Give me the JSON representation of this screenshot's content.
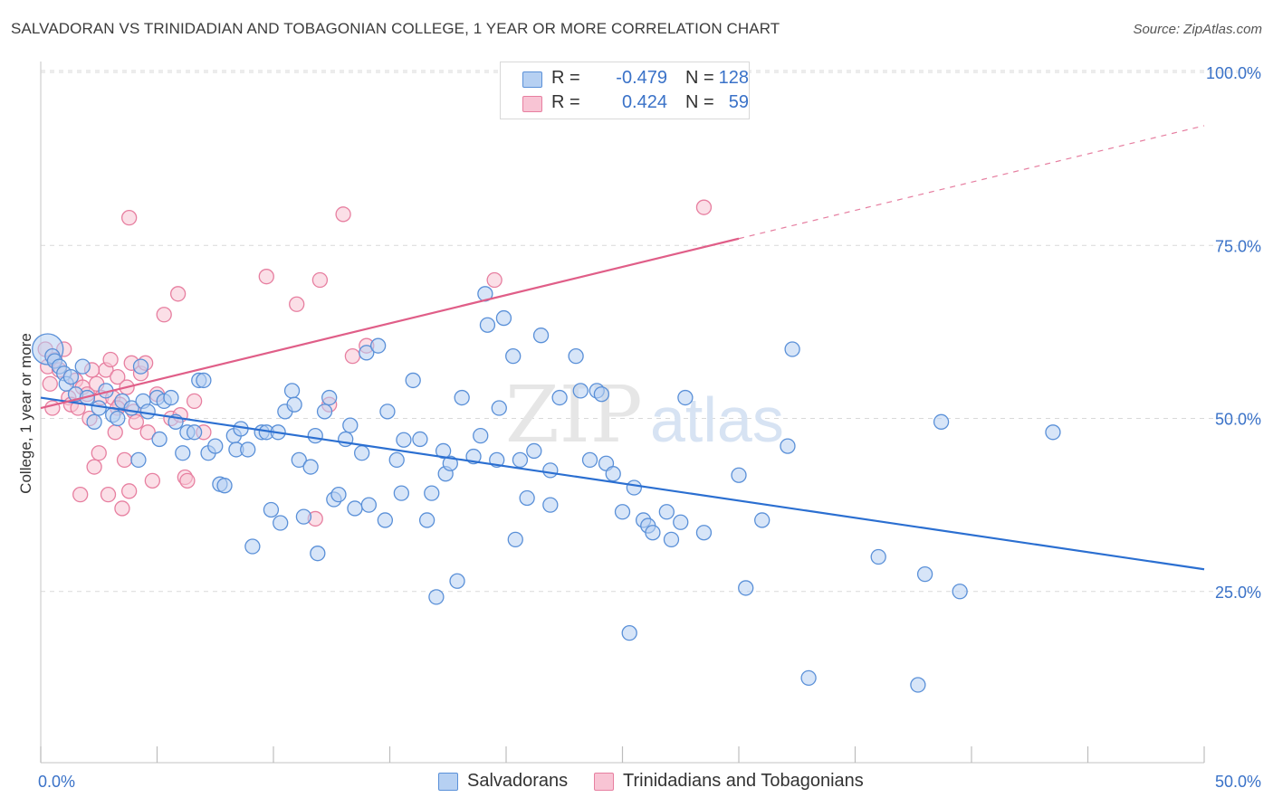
{
  "header": {
    "title": "SALVADORAN VS TRINIDADIAN AND TOBAGONIAN COLLEGE, 1 YEAR OR MORE CORRELATION CHART",
    "source": "Source: ZipAtlas.com"
  },
  "legend": {
    "rows": [
      {
        "r_label": "R =",
        "r_value": "-0.479",
        "n_label": "N =",
        "n_value": "128"
      },
      {
        "r_label": "R =",
        "r_value": "0.424",
        "n_label": "N =",
        "n_value": "59"
      }
    ]
  },
  "bottom_legend": {
    "items": [
      {
        "label": "Salvadorans"
      },
      {
        "label": "Trinidadians and Tobagonians"
      }
    ]
  },
  "watermark": {
    "zip": "ZIP",
    "atlas": "atlas"
  },
  "colors": {
    "blue_fill": "#b6d0f2",
    "blue_stroke": "#5a90d8",
    "blue_line": "#2b6fd1",
    "pink_fill": "#f8c4d4",
    "pink_stroke": "#e77fa0",
    "pink_line": "#e05e88",
    "tick_label": "#3a72c8",
    "grid": "#d9d9d9"
  },
  "chart_data": {
    "type": "scatter",
    "ylabel": "College, 1 year or more",
    "xlim": [
      0,
      50
    ],
    "ylim": [
      0,
      100
    ],
    "x_tick_labels": [
      {
        "x": 0,
        "label": "0.0%"
      },
      {
        "x": 50,
        "label": "50.0%"
      }
    ],
    "x_minor_ticks": [
      0,
      5,
      10,
      15,
      20,
      25,
      30,
      35,
      40,
      45,
      50
    ],
    "y_ticks": [
      {
        "y": 25,
        "label": "25.0%"
      },
      {
        "y": 50,
        "label": "50.0%"
      },
      {
        "y": 75,
        "label": "75.0%"
      },
      {
        "y": 100,
        "label": "100.0%"
      }
    ],
    "series": [
      {
        "name": "Salvadorans",
        "color": "blue",
        "trend": {
          "x0": 0,
          "y0": 53.0,
          "x1": 50,
          "y1": 28.2,
          "dash_from": 50
        },
        "points": [
          [
            0.3,
            60.0
          ],
          [
            0.5,
            59.0
          ],
          [
            0.6,
            58.3
          ],
          [
            0.8,
            57.5
          ],
          [
            1.0,
            56.5
          ],
          [
            1.1,
            55.0
          ],
          [
            1.3,
            56.0
          ],
          [
            1.5,
            53.5
          ],
          [
            1.8,
            57.5
          ],
          [
            2.0,
            53.0
          ],
          [
            2.3,
            49.5
          ],
          [
            2.5,
            51.5
          ],
          [
            2.8,
            54.0
          ],
          [
            3.1,
            50.5
          ],
          [
            3.3,
            50.0
          ],
          [
            3.5,
            52.5
          ],
          [
            3.9,
            51.5
          ],
          [
            4.2,
            44.0
          ],
          [
            4.3,
            57.5
          ],
          [
            4.4,
            52.5
          ],
          [
            4.6,
            51.0
          ],
          [
            5.0,
            53.0
          ],
          [
            5.1,
            47.0
          ],
          [
            5.3,
            52.5
          ],
          [
            5.6,
            53.0
          ],
          [
            5.8,
            49.5
          ],
          [
            6.1,
            45.0
          ],
          [
            6.3,
            48.0
          ],
          [
            6.6,
            48.0
          ],
          [
            6.8,
            55.5
          ],
          [
            7.0,
            55.5
          ],
          [
            7.2,
            45.0
          ],
          [
            7.5,
            46.0
          ],
          [
            7.7,
            40.5
          ],
          [
            7.9,
            40.3
          ],
          [
            8.3,
            47.5
          ],
          [
            8.4,
            45.5
          ],
          [
            8.6,
            48.5
          ],
          [
            8.9,
            45.5
          ],
          [
            9.1,
            31.5
          ],
          [
            9.5,
            48.0
          ],
          [
            9.7,
            48.0
          ],
          [
            9.9,
            36.8
          ],
          [
            10.2,
            48.0
          ],
          [
            10.3,
            34.9
          ],
          [
            10.5,
            51.0
          ],
          [
            10.8,
            54.0
          ],
          [
            10.9,
            52.0
          ],
          [
            11.1,
            44.0
          ],
          [
            11.3,
            35.8
          ],
          [
            11.6,
            43.0
          ],
          [
            11.8,
            47.5
          ],
          [
            11.9,
            30.5
          ],
          [
            12.2,
            51.0
          ],
          [
            12.4,
            53.0
          ],
          [
            12.6,
            38.3
          ],
          [
            12.8,
            39.0
          ],
          [
            13.1,
            47.0
          ],
          [
            13.3,
            49.0
          ],
          [
            13.5,
            37.0
          ],
          [
            13.8,
            45.0
          ],
          [
            14.0,
            59.5
          ],
          [
            14.1,
            37.5
          ],
          [
            14.5,
            60.5
          ],
          [
            14.8,
            35.3
          ],
          [
            14.9,
            51.0
          ],
          [
            15.3,
            44.0
          ],
          [
            15.5,
            39.2
          ],
          [
            15.6,
            46.9
          ],
          [
            16.0,
            55.5
          ],
          [
            16.3,
            47.0
          ],
          [
            16.6,
            35.3
          ],
          [
            16.8,
            39.2
          ],
          [
            17.0,
            24.2
          ],
          [
            17.3,
            45.3
          ],
          [
            17.4,
            42.0
          ],
          [
            17.6,
            43.5
          ],
          [
            17.9,
            26.5
          ],
          [
            18.1,
            53.0
          ],
          [
            18.6,
            44.5
          ],
          [
            18.9,
            47.5
          ],
          [
            19.1,
            68.0
          ],
          [
            19.2,
            63.5
          ],
          [
            19.6,
            44.0
          ],
          [
            19.7,
            51.5
          ],
          [
            19.9,
            64.5
          ],
          [
            20.3,
            59.0
          ],
          [
            20.4,
            32.5
          ],
          [
            20.6,
            44.0
          ],
          [
            20.9,
            38.5
          ],
          [
            21.2,
            45.3
          ],
          [
            21.5,
            62.0
          ],
          [
            21.9,
            42.5
          ],
          [
            21.9,
            37.5
          ],
          [
            22.3,
            53.0
          ],
          [
            23.0,
            59.0
          ],
          [
            23.2,
            54.0
          ],
          [
            23.6,
            44.0
          ],
          [
            23.9,
            54.0
          ],
          [
            24.1,
            53.5
          ],
          [
            24.3,
            43.5
          ],
          [
            24.6,
            42.0
          ],
          [
            25.0,
            36.5
          ],
          [
            25.3,
            19.0
          ],
          [
            25.5,
            40.0
          ],
          [
            25.9,
            35.3
          ],
          [
            26.1,
            34.5
          ],
          [
            26.3,
            33.5
          ],
          [
            26.9,
            36.5
          ],
          [
            27.1,
            32.5
          ],
          [
            27.5,
            35.0
          ],
          [
            27.7,
            53.0
          ],
          [
            28.5,
            33.5
          ],
          [
            30.0,
            41.8
          ],
          [
            30.3,
            25.5
          ],
          [
            31.0,
            35.3
          ],
          [
            32.1,
            46.0
          ],
          [
            32.3,
            60.0
          ],
          [
            33.0,
            12.5
          ],
          [
            36.0,
            30.0
          ],
          [
            37.7,
            11.5
          ],
          [
            38.0,
            27.5
          ],
          [
            38.7,
            49.5
          ],
          [
            39.5,
            25.0
          ],
          [
            43.5,
            48.0
          ]
        ]
      },
      {
        "name": "Trinidadians and Tobagonians",
        "color": "pink",
        "trend": {
          "x0": 0,
          "y0": 51.5,
          "x1": 50,
          "y1": 92.3,
          "dash_from": 30
        },
        "points": [
          [
            0.2,
            60.0
          ],
          [
            0.3,
            57.5
          ],
          [
            0.4,
            55.0
          ],
          [
            0.5,
            51.5
          ],
          [
            0.6,
            58.5
          ],
          [
            0.8,
            57.0
          ],
          [
            1.0,
            60.0
          ],
          [
            1.2,
            53.0
          ],
          [
            1.3,
            52.0
          ],
          [
            1.5,
            55.5
          ],
          [
            1.6,
            51.5
          ],
          [
            1.8,
            54.5
          ],
          [
            2.0,
            53.5
          ],
          [
            2.1,
            50.0
          ],
          [
            2.3,
            43.0
          ],
          [
            2.4,
            55.0
          ],
          [
            2.5,
            45.0
          ],
          [
            2.6,
            53.0
          ],
          [
            2.8,
            57.0
          ],
          [
            2.9,
            39.0
          ],
          [
            3.0,
            58.5
          ],
          [
            3.1,
            53.0
          ],
          [
            3.2,
            48.0
          ],
          [
            3.3,
            56.0
          ],
          [
            3.4,
            52.0
          ],
          [
            3.5,
            37.0
          ],
          [
            3.6,
            44.0
          ],
          [
            3.7,
            54.5
          ],
          [
            3.8,
            39.5
          ],
          [
            3.9,
            58.0
          ],
          [
            4.0,
            51.0
          ],
          [
            4.1,
            49.5
          ],
          [
            4.3,
            56.5
          ],
          [
            4.5,
            58.0
          ],
          [
            4.6,
            48.0
          ],
          [
            4.8,
            41.0
          ],
          [
            5.0,
            53.5
          ],
          [
            5.3,
            65.0
          ],
          [
            5.6,
            50.0
          ],
          [
            5.9,
            68.0
          ],
          [
            6.0,
            50.5
          ],
          [
            6.2,
            41.5
          ],
          [
            6.3,
            41.0
          ],
          [
            6.6,
            52.5
          ],
          [
            7.0,
            48.0
          ],
          [
            3.8,
            79.0
          ],
          [
            9.7,
            70.5
          ],
          [
            11.0,
            66.5
          ],
          [
            11.8,
            35.5
          ],
          [
            12.0,
            70.0
          ],
          [
            12.4,
            52.0
          ],
          [
            13.0,
            79.5
          ],
          [
            13.4,
            59.0
          ],
          [
            14.0,
            60.5
          ],
          [
            19.5,
            70.0
          ],
          [
            28.5,
            80.5
          ],
          [
            1.7,
            39.0
          ],
          [
            3.3,
            51.5
          ],
          [
            2.2,
            57.0
          ]
        ]
      }
    ]
  }
}
